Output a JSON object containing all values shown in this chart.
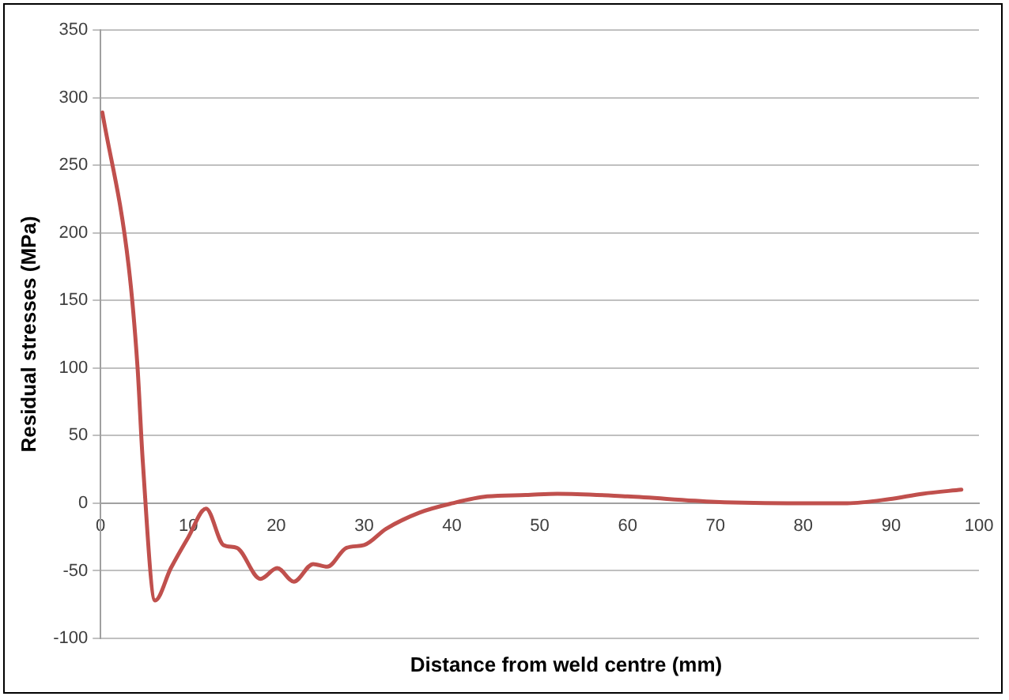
{
  "chart_data": {
    "type": "line",
    "xlabel": "Distance from weld centre (mm)",
    "ylabel": "Residual stresses (MPa)",
    "xlim": [
      0,
      100
    ],
    "xticks": [
      0,
      10,
      20,
      30,
      40,
      50,
      60,
      70,
      80,
      90,
      100
    ],
    "ylim": [
      -100,
      350
    ],
    "yticks": [
      -100,
      -50,
      0,
      50,
      100,
      150,
      200,
      250,
      300,
      350
    ],
    "grid": "y",
    "marker": "none",
    "line_style": "solid",
    "series": [
      {
        "color": "#c0504d",
        "x": [
          0.2,
          3.2,
          4.2,
          4.8,
          6.2,
          8,
          10,
          12,
          14,
          15.5,
          18.2,
          20.1,
          22,
          24.2,
          25.8,
          28,
          30,
          32.5,
          36.3,
          40.1,
          44,
          48.4,
          52,
          60,
          70,
          79.6,
          85,
          89.8,
          93.6,
          98
        ],
        "values": [
          289,
          175,
          101,
          31,
          -72,
          -48,
          -25,
          -4,
          -31,
          -33,
          -56,
          -48,
          -58,
          -45,
          -47,
          -33,
          -31,
          -19,
          -7,
          0,
          5,
          6,
          7,
          5,
          1,
          0,
          0,
          3,
          7,
          10
        ]
      }
    ]
  }
}
